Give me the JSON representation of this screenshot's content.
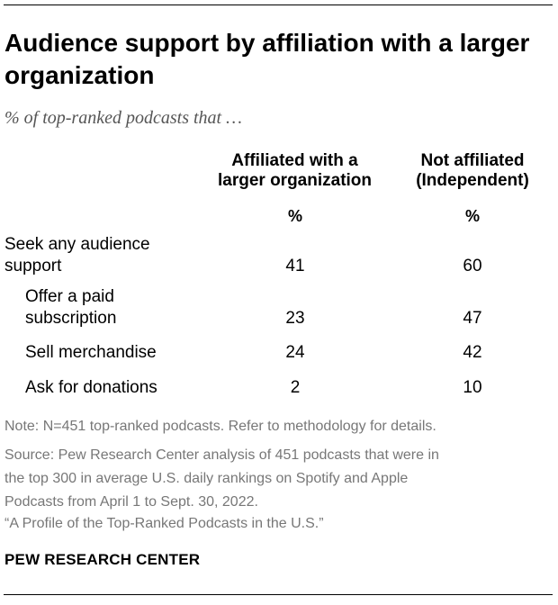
{
  "title": "Audience support by affiliation with a larger organization",
  "subtitle": "% of top-ranked podcasts that …",
  "columns": [
    {
      "line1": "Affiliated with a",
      "line2": "larger organization",
      "unit": "%"
    },
    {
      "line1": "Not affiliated",
      "line2": "(Independent)",
      "unit": "%"
    }
  ],
  "chart_data": {
    "type": "table",
    "title": "Audience support by affiliation with a larger organization",
    "subtitle": "% of top-ranked podcasts that …",
    "series_names": [
      "Affiliated with a larger organization",
      "Not affiliated (Independent)"
    ],
    "rows": [
      {
        "label_line1": "Seek any audience",
        "label_line2": "support",
        "affiliated": 41,
        "independent": 60
      },
      {
        "label_line1": "Offer a paid",
        "label_line2": "subscription",
        "affiliated": 23,
        "independent": 47
      },
      {
        "label_line1": "Sell merchandise",
        "label_line2": "",
        "affiliated": 24,
        "independent": 42
      },
      {
        "label_line1": "Ask for donations",
        "label_line2": "",
        "affiliated": 2,
        "independent": 10
      }
    ]
  },
  "notes": [
    "Note: N=451 top-ranked podcasts. Refer to methodology for details.",
    "Source: Pew Research Center analysis of 451 podcasts that were in",
    "the top 300 in average U.S. daily rankings on Spotify and Apple",
    "Podcasts from April 1 to Sept. 30, 2022.",
    "“A Profile of the Top-Ranked Podcasts in the U.S.”"
  ],
  "brand": "PEW RESEARCH CENTER"
}
